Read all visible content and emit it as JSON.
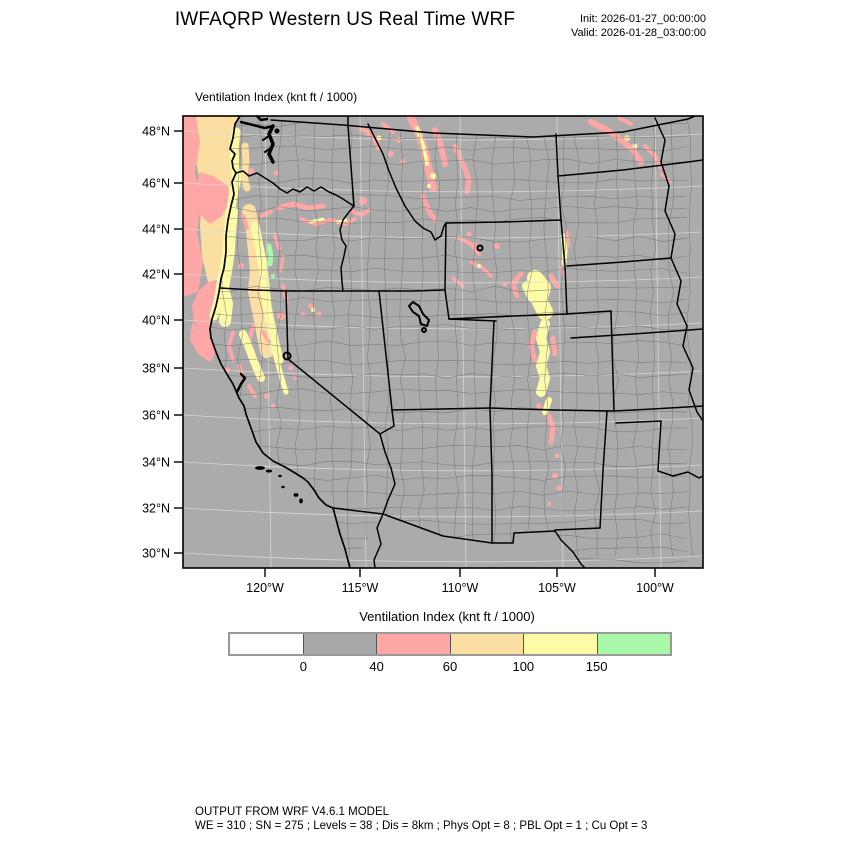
{
  "header": {
    "title": "IWFAQRP Western US Real Time WRF",
    "init_label": "Init: 2026-01-27_00:00:00",
    "valid_label": "Valid: 2026-01-28_03:00:00"
  },
  "map": {
    "field_label": "Ventilation Index  (knt ft / 1000)"
  },
  "chart_data": {
    "type": "heatmap",
    "title": "Ventilation Index (knt ft / 1000)",
    "projection": "Lambert conformal over western United States with state and county boundaries",
    "x_axis": {
      "ticks": [
        "120°W",
        "115°W",
        "110°W",
        "105°W",
        "100°W"
      ]
    },
    "y_axis": {
      "ticks": [
        "48°N",
        "46°N",
        "44°N",
        "42°N",
        "40°N",
        "38°N",
        "36°N",
        "34°N",
        "32°N",
        "30°N"
      ]
    },
    "colorbar": {
      "title": "Ventilation Index  (knt ft / 1000)",
      "labels": [
        "0",
        "40",
        "60",
        "100",
        "150"
      ],
      "colors": [
        "#ffffff",
        "#a9a9a9",
        "#ffa6a6",
        "#fbdfa2",
        "#fdfba6",
        "#a9f7a9"
      ],
      "bin_meaning": [
        "below 0",
        "0-40",
        "40-60",
        "60-100",
        "100-150",
        "above 150"
      ]
    },
    "base_land_color": "#ababab",
    "high_vi_regions": [
      "Pacific waters off Washington and Oregon coasts (60-100 with 40-60 fringes)",
      "Washington/Oregon coastal strip and Cascades (100-150, small >150 pocket in central Oregon)",
      "Northern California Coast Ranges and Sacramento Valley (40-150)",
      "Columbia Basin streaks across north Oregon into Idaho (40-60)",
      "Idaho Panhandle and western Montana (40-60 with 100-150 cores)",
      "Northeastern Montana band (40-60)",
      "Scattered western Wyoming patches (40-60)",
      "Southeast Wyoming and Colorado Front Range into northern New Mexico (100-150 band with 40-60 fringe)"
    ]
  },
  "footer": {
    "line1": "OUTPUT FROM WRF V4.6.1 MODEL",
    "line2": "WE = 310 ; SN = 275 ; Levels = 38 ; Dis = 8km ; Phys Opt = 8 ; PBL Opt = 1 ; Cu Opt = 3"
  }
}
